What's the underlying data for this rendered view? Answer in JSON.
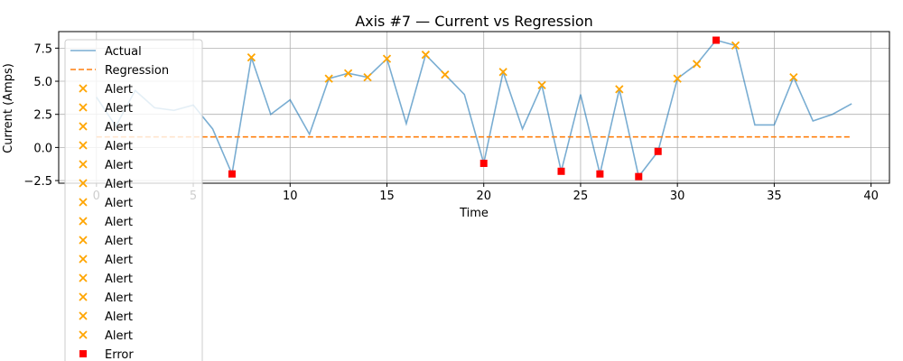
{
  "chart_data": {
    "type": "line",
    "title": "Axis #7 — Current vs Regression",
    "xlabel": "Time",
    "ylabel": "Current (Amps)",
    "xlim": [
      -1.95,
      40.95
    ],
    "ylim": [
      -2.7,
      8.75
    ],
    "xticks": [
      0,
      5,
      10,
      15,
      20,
      25,
      30,
      35,
      40
    ],
    "yticks": [
      -2.5,
      0.0,
      2.5,
      5.0,
      7.5
    ],
    "ytick_labels": [
      "−2.5",
      "0.0",
      "2.5",
      "5.0",
      "7.5"
    ],
    "grid": true,
    "legend_position": "upper-left",
    "colors": {
      "actual": "#1f77b4",
      "regression": "#ff7f0e",
      "alert": "#ffa500",
      "error": "#ff0000"
    },
    "series": [
      {
        "name": "Actual",
        "style": "line",
        "x": [
          0,
          1,
          2,
          3,
          4,
          5,
          6,
          7,
          8,
          9,
          10,
          11,
          12,
          13,
          14,
          15,
          16,
          17,
          18,
          19,
          20,
          21,
          22,
          23,
          24,
          25,
          26,
          27,
          28,
          29,
          30,
          31,
          32,
          33,
          34,
          35,
          36,
          37,
          38,
          39
        ],
        "y": [
          3.8,
          1.6,
          4.3,
          3.0,
          2.8,
          3.2,
          1.4,
          -2.0,
          6.8,
          2.5,
          3.6,
          1.0,
          5.2,
          5.6,
          5.3,
          6.7,
          1.8,
          7.0,
          5.5,
          4.0,
          -1.2,
          5.7,
          1.4,
          4.7,
          -1.8,
          4.0,
          -2.0,
          4.4,
          -2.2,
          -0.3,
          5.2,
          6.3,
          8.1,
          7.7,
          1.7,
          1.7,
          5.3,
          2.0,
          2.5,
          3.3
        ]
      },
      {
        "name": "Regression",
        "style": "dashed",
        "x": [
          0,
          39
        ],
        "y": [
          0.8,
          0.8
        ]
      }
    ],
    "alerts": {
      "legend_label": "Alert",
      "points": [
        {
          "x": 8,
          "y": 6.8
        },
        {
          "x": 12,
          "y": 5.2
        },
        {
          "x": 13,
          "y": 5.6
        },
        {
          "x": 14,
          "y": 5.3
        },
        {
          "x": 15,
          "y": 6.7
        },
        {
          "x": 17,
          "y": 7.0
        },
        {
          "x": 18,
          "y": 5.5
        },
        {
          "x": 21,
          "y": 5.7
        },
        {
          "x": 23,
          "y": 4.7
        },
        {
          "x": 27,
          "y": 4.4
        },
        {
          "x": 30,
          "y": 5.2
        },
        {
          "x": 31,
          "y": 6.3
        },
        {
          "x": 33,
          "y": 7.7
        },
        {
          "x": 36,
          "y": 5.3
        }
      ]
    },
    "errors": {
      "legend_label": "Error",
      "points": [
        {
          "x": 7,
          "y": -2.0
        },
        {
          "x": 20,
          "y": -1.2
        },
        {
          "x": 24,
          "y": -1.8
        },
        {
          "x": 26,
          "y": -2.0
        },
        {
          "x": 28,
          "y": -2.2
        },
        {
          "x": 29,
          "y": -0.3
        },
        {
          "x": 32,
          "y": 8.1
        }
      ]
    }
  }
}
